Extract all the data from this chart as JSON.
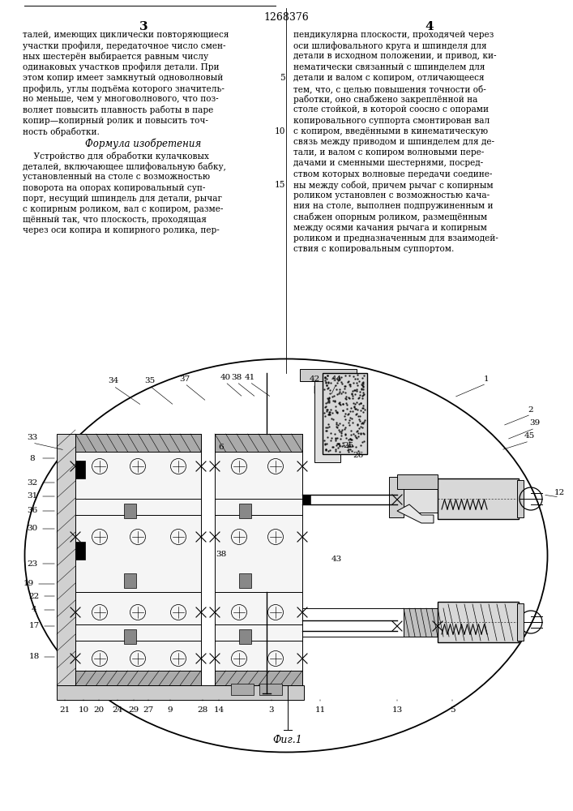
{
  "title": "1268376",
  "page_left": "3",
  "page_right": "4",
  "left_col_top_lines": [
    "талей, имеющих циклически повторяющиеся",
    "участки профиля, передаточное число смен-",
    "ных шестерён выбирается равным числу",
    "одинаковых участков профиля детали. При",
    "этом копир имеет замкнутый одноволновый",
    "профиль, углы подъёма которого значитель-",
    "но меньше, чем у многоволнового, что поз-",
    "воляет повысить плавность работы в паре",
    "копир—копирный ролик и повысить точ-",
    "ность обработки."
  ],
  "left_col_header": "Формула изобретения",
  "left_col_bottom_lines": [
    "    Устройство для обработки кулачковых",
    "деталей, включающее шлифовальную бабку,",
    "установленный на столе с возможностью",
    "поворота на опорах копировальный суп-",
    "порт, несущий шпиндель для детали, рычаг",
    "с копирным роликом, вал с копиром, разме-",
    "щённый так, что плоскость, проходящая",
    "через оси копира и копирного ролика, пер-"
  ],
  "right_col_lines": [
    "пендикулярна плоскости, проходячей через",
    "оси шлифовального круга и шпинделя для",
    "детали в исходном положении, и привод, ки-",
    "нематически связанный с шпинделем для",
    "детали и валом с копиром, отличающееся",
    "тем, что, с целью повышения точности об-",
    "работки, оно снабжено закреплённой на",
    "столе стойкой, в которой соосно с опорами",
    "копировального суппорта смонтирован вал",
    "с копиром, введёнными в кинематическую",
    "связь между приводом и шпинделем для де-",
    "тали, и валом с копиром волновыми пере-",
    "дачами и сменными шестернями, посред-",
    "ством которых волновые передачи соедине-",
    "ны между собой, причем рычаг с копирным",
    "роликом установлен с возможностью кача-",
    "ния на столе, выполнен подпружиненным и",
    "снабжен опорным роликом, размещённым",
    "между осями качания рычага и копирным",
    "роликом и предназначенным для взаимодей-",
    "ствия с копировальным суппортом."
  ],
  "line_numbers": {
    "5": 5,
    "10": 10,
    "15": 15
  },
  "fig_label": "Фиг.1",
  "bg_color": "#ffffff",
  "text_color": "#000000"
}
